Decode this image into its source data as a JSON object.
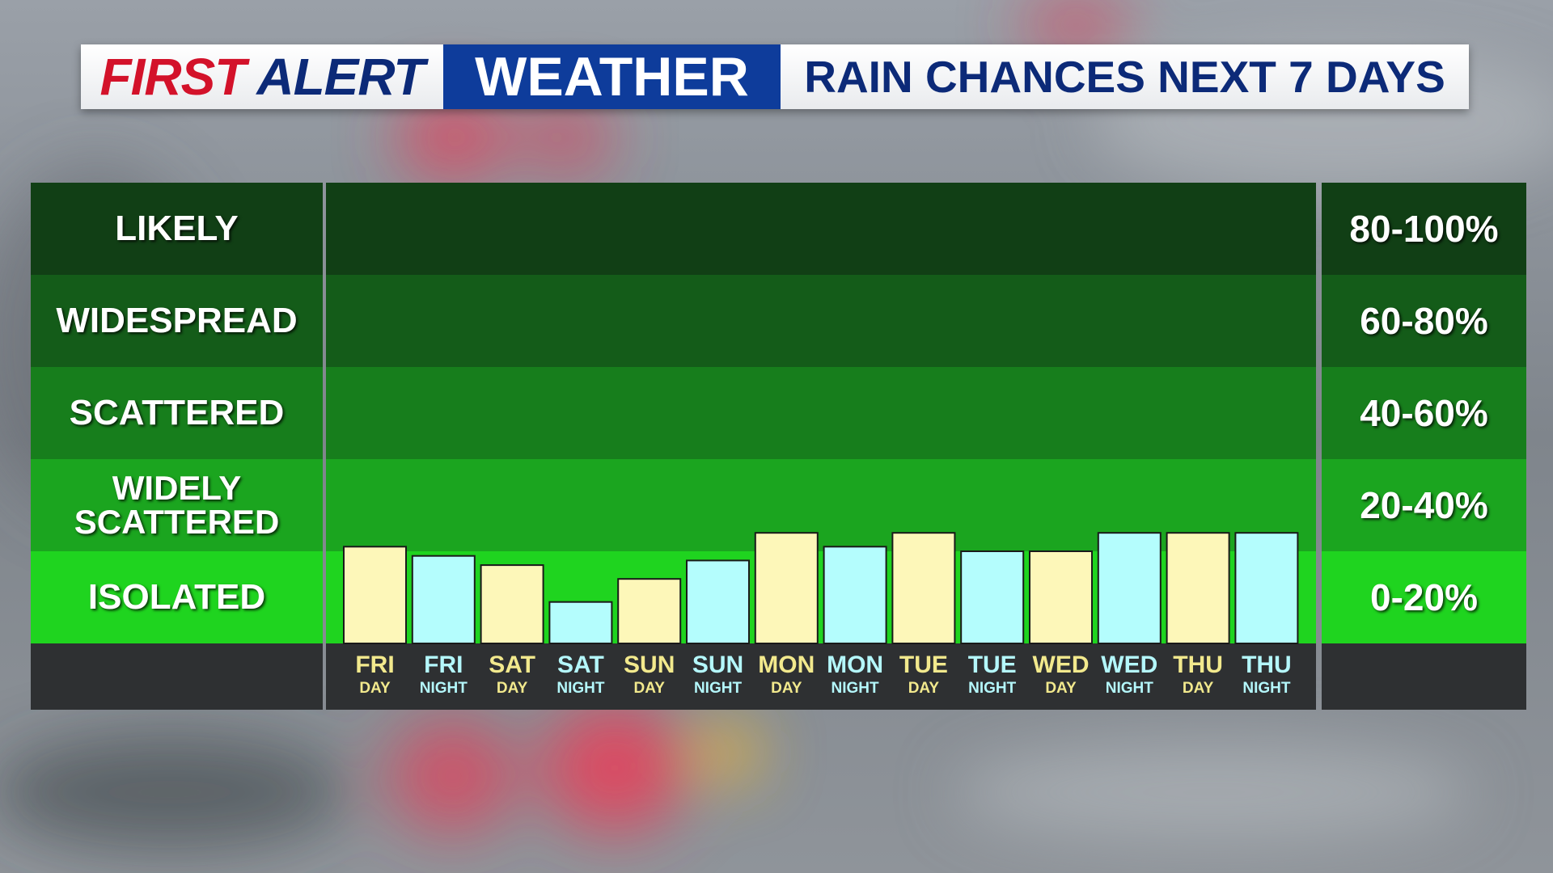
{
  "header": {
    "brand_first": "FIRST",
    "brand_alert": "ALERT",
    "brand_weather": "WEATHER",
    "headline": "RAIN CHANCES NEXT 7 DAYS"
  },
  "colors": {
    "brand_red": "#d3122a",
    "brand_navy": "#0c2a78",
    "weather_blue": "#0e3c9b",
    "day_bar": "#fdf7b9",
    "night_bar": "#b4fdfd",
    "day_text": "#f2e98d",
    "night_text": "#b4f7fb",
    "band_colors": [
      "#113f15",
      "#145c19",
      "#177e1c",
      "#1ba51f",
      "#1fd41f"
    ]
  },
  "chart_data": {
    "type": "bar",
    "title": "",
    "xlabel": "",
    "ylabel": "",
    "ylim": [
      0,
      100
    ],
    "y_units": "%",
    "grid": false,
    "legend": "none",
    "bands": [
      {
        "name": "LIKELY",
        "lines": [
          "LIKELY"
        ],
        "range_label": "80-100%",
        "min": 80,
        "max": 100
      },
      {
        "name": "WIDESPREAD",
        "lines": [
          "WIDESPREAD"
        ],
        "range_label": "60-80%",
        "min": 60,
        "max": 80
      },
      {
        "name": "SCATTERED",
        "lines": [
          "SCATTERED"
        ],
        "range_label": "40-60%",
        "min": 40,
        "max": 60
      },
      {
        "name": "WIDELY SCATTERED",
        "lines": [
          "WIDELY",
          "SCATTERED"
        ],
        "range_label": "20-40%",
        "min": 20,
        "max": 40
      },
      {
        "name": "ISOLATED",
        "lines": [
          "ISOLATED"
        ],
        "range_label": "0-20%",
        "min": 0,
        "max": 20
      }
    ],
    "categories": [
      {
        "day": "FRI",
        "period": "DAY"
      },
      {
        "day": "FRI",
        "period": "NIGHT"
      },
      {
        "day": "SAT",
        "period": "DAY"
      },
      {
        "day": "SAT",
        "period": "NIGHT"
      },
      {
        "day": "SUN",
        "period": "DAY"
      },
      {
        "day": "SUN",
        "period": "NIGHT"
      },
      {
        "day": "MON",
        "period": "DAY"
      },
      {
        "day": "MON",
        "period": "NIGHT"
      },
      {
        "day": "TUE",
        "period": "DAY"
      },
      {
        "day": "TUE",
        "period": "NIGHT"
      },
      {
        "day": "WED",
        "period": "DAY"
      },
      {
        "day": "WED",
        "period": "NIGHT"
      },
      {
        "day": "THU",
        "period": "DAY"
      },
      {
        "day": "THU",
        "period": "NIGHT"
      }
    ],
    "values": [
      21,
      19,
      17,
      9,
      14,
      18,
      24,
      21,
      24,
      20,
      20,
      24,
      24,
      24
    ]
  }
}
